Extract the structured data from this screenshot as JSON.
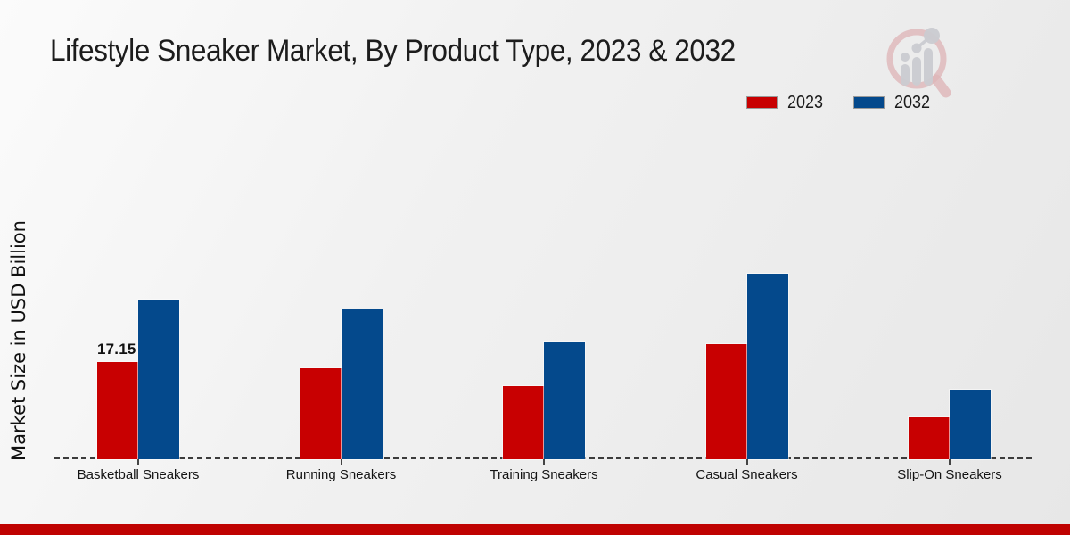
{
  "header": {
    "title": "Lifestyle Sneaker Market, By Product Type, 2023 & 2032"
  },
  "axes": {
    "y_label": "Market Size in USD Billion"
  },
  "legend": {
    "items": [
      {
        "label": "2023",
        "color": "#c80001"
      },
      {
        "label": "2032",
        "color": "#04498c"
      }
    ]
  },
  "chart_data": {
    "type": "bar",
    "title": "Lifestyle Sneaker Market, By Product Type, 2023 & 2032",
    "categories": [
      "Basketball Sneakers",
      "Running Sneakers",
      "Training Sneakers",
      "Casual Sneakers",
      "Slip-On Sneakers"
    ],
    "series": [
      {
        "name": "2023",
        "color": "#c80001",
        "values": [
          17.15,
          16.1,
          12.85,
          20.35,
          7.35
        ]
      },
      {
        "name": "2032",
        "color": "#04498c",
        "values": [
          28.2,
          26.4,
          20.8,
          32.7,
          12.3
        ]
      }
    ],
    "xlabel": "",
    "ylabel": "Market Size in USD Billion",
    "ylim": [
      0,
      35
    ],
    "grid": false,
    "axis_style": "dashed baseline only, no y ticks",
    "legend_position": "top-right",
    "annotations": [
      {
        "series": "2023",
        "category": "Basketball Sneakers",
        "text": "17.15"
      }
    ]
  },
  "footer": {
    "accent_color": "#bf0201"
  },
  "logo": {
    "name": "market-research-magnifier-logo",
    "ring_color": "#dfb6b9",
    "bars_color": "#cbccd1"
  }
}
